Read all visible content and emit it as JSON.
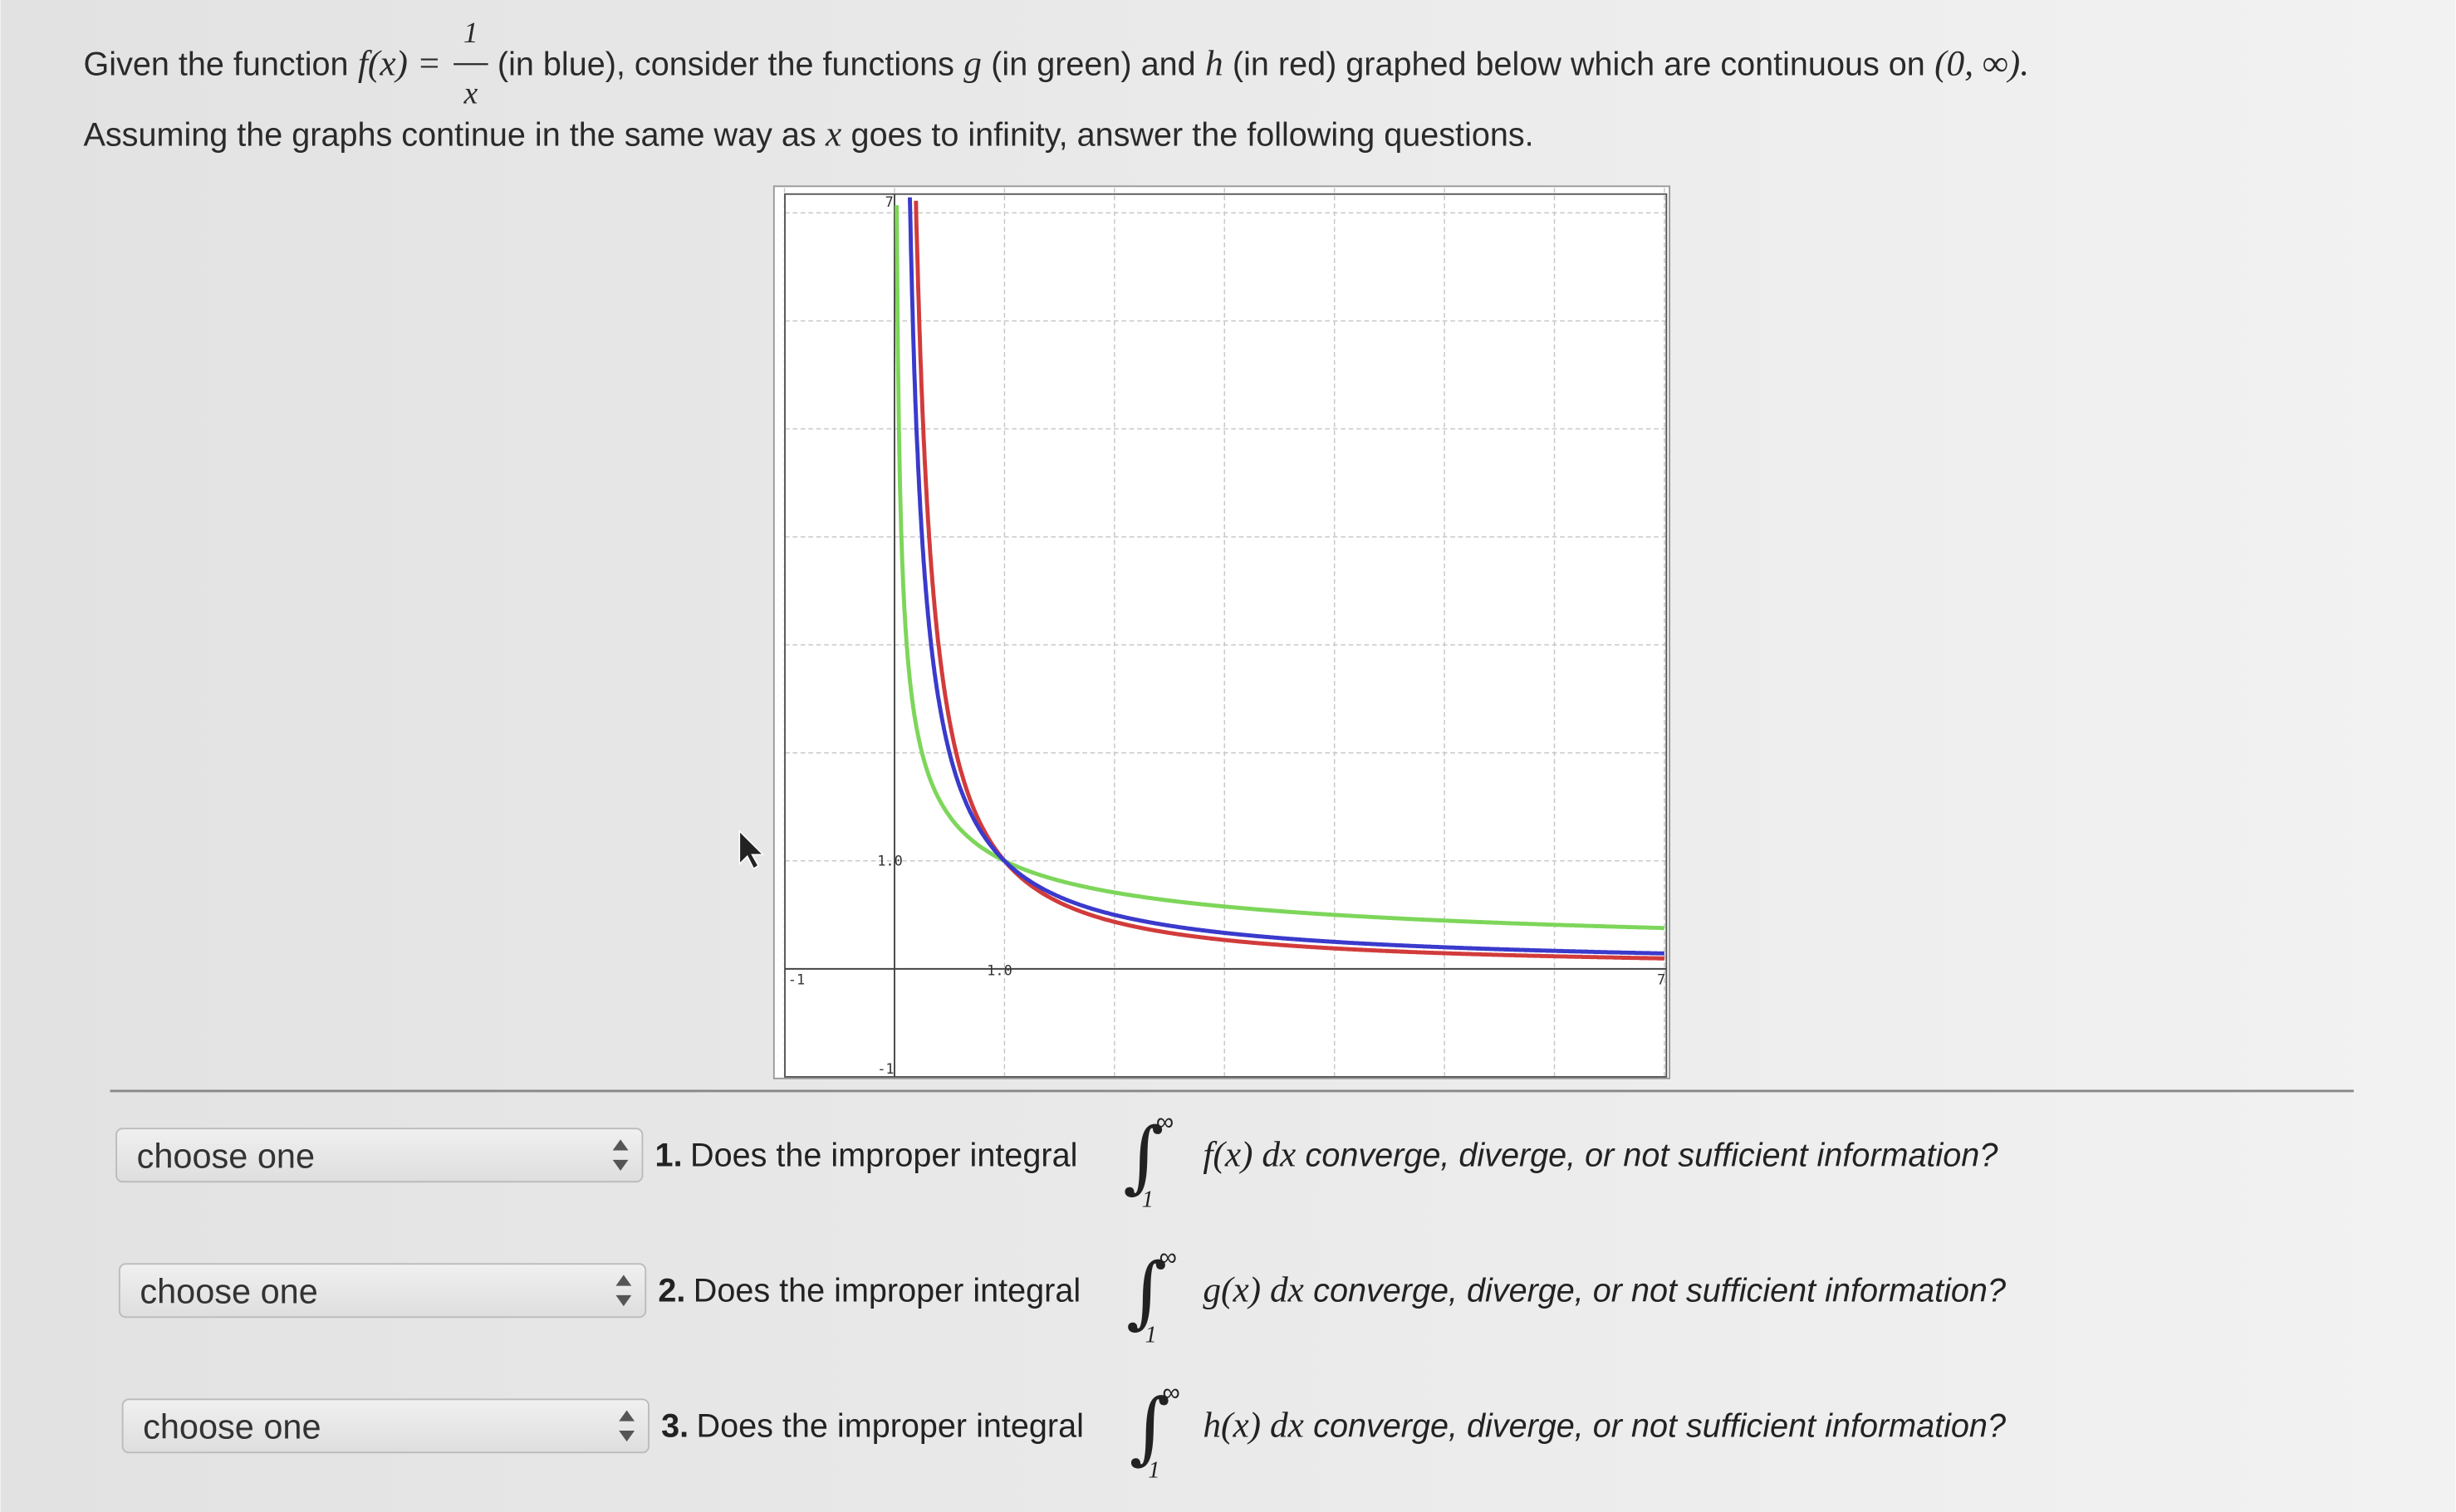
{
  "prompt": {
    "line1": [
      "Given the function",
      "f(x) =",
      "(in blue), consider the functions",
      "g",
      "(in green) and",
      "h",
      "(in red) graphed below which are continuous on",
      "(0, ∞)."
    ],
    "fraction": {
      "numerator": "1",
      "denominator": "x"
    },
    "line2": [
      "Assuming the graphs continue in the same way as",
      "x",
      "goes to infinity, answer the following questions."
    ]
  },
  "graph": {
    "y_axis_one": "1.0",
    "x_axis_one": "1.0",
    "x_left": "-1",
    "x_right": "7",
    "y_bottom": "-1",
    "y_top": "7"
  },
  "questions": [
    {
      "select": "choose one",
      "number": "1.",
      "text": "Does the improper integral",
      "upper": "∞",
      "lower": "1",
      "integrand": "f(x) dx",
      "rest": "converge, diverge, or not sufficient information?"
    },
    {
      "select": "choose one",
      "number": "2.",
      "text": "Does the improper integral",
      "upper": "∞",
      "lower": "1",
      "integrand": "g(x) dx",
      "rest": "converge, diverge, or not sufficient information?"
    },
    {
      "select": "choose one",
      "number": "3.",
      "text": "Does the improper integral",
      "upper": "∞",
      "lower": "1",
      "integrand": "h(x) dx",
      "rest": "converge, diverge, or not sufficient information?"
    }
  ]
}
